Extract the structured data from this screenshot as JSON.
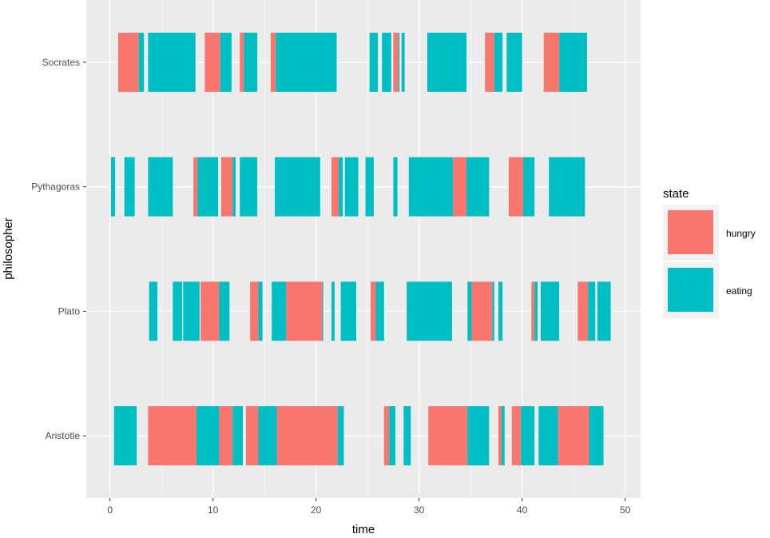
{
  "chart_data": {
    "type": "bar",
    "orientation": "horizontal-timeline",
    "xlabel": "time",
    "ylabel": "philosopher",
    "xlim": [
      -2.3,
      51.5
    ],
    "x_ticks": [
      0,
      10,
      20,
      30,
      40,
      50
    ],
    "x_tick_labels": [
      "0",
      "10",
      "20",
      "30",
      "40",
      "50"
    ],
    "categories": [
      "Aristotle",
      "Plato",
      "Pythagoras",
      "Socrates"
    ],
    "grid": true,
    "legend": {
      "title": "state",
      "position": "right",
      "entries": [
        {
          "key": "hungry",
          "label": "hungry",
          "color": "#F8766D"
        },
        {
          "key": "eating",
          "label": "eating",
          "color": "#00BFC4"
        }
      ]
    },
    "colors": {
      "hungry": "#F8766D",
      "eating": "#00BFC4",
      "panel": "#EBEBEB",
      "grid": "#FFFFFF"
    },
    "series": [
      {
        "category": "Socrates",
        "segments": [
          {
            "state": "hungry",
            "start": 0.8,
            "end": 2.8
          },
          {
            "state": "eating",
            "start": 2.8,
            "end": 3.3
          },
          {
            "state": "eating",
            "start": 3.7,
            "end": 8.3
          },
          {
            "state": "hungry",
            "start": 9.2,
            "end": 10.7
          },
          {
            "state": "eating",
            "start": 10.7,
            "end": 11.8
          },
          {
            "state": "hungry",
            "start": 12.6,
            "end": 13.0
          },
          {
            "state": "eating",
            "start": 13.0,
            "end": 14.3
          },
          {
            "state": "hungry",
            "start": 15.6,
            "end": 16.1
          },
          {
            "state": "eating",
            "start": 16.1,
            "end": 22.0
          },
          {
            "state": "eating",
            "start": 25.2,
            "end": 26.0
          },
          {
            "state": "eating",
            "start": 26.4,
            "end": 27.3
          },
          {
            "state": "hungry",
            "start": 27.5,
            "end": 28.0
          },
          {
            "state": "eating",
            "start": 28.0,
            "end": 28.1
          },
          {
            "state": "eating",
            "start": 28.3,
            "end": 28.6
          },
          {
            "state": "eating",
            "start": 30.8,
            "end": 34.6
          },
          {
            "state": "hungry",
            "start": 36.4,
            "end": 37.3
          },
          {
            "state": "eating",
            "start": 37.3,
            "end": 38.1
          },
          {
            "state": "eating",
            "start": 38.5,
            "end": 40.0
          },
          {
            "state": "hungry",
            "start": 42.1,
            "end": 43.6
          },
          {
            "state": "eating",
            "start": 43.6,
            "end": 46.3
          }
        ]
      },
      {
        "category": "Pythagoras",
        "segments": [
          {
            "state": "eating",
            "start": 0.1,
            "end": 0.5
          },
          {
            "state": "eating",
            "start": 1.4,
            "end": 2.4
          },
          {
            "state": "eating",
            "start": 3.7,
            "end": 6.1
          },
          {
            "state": "hungry",
            "start": 8.1,
            "end": 8.5
          },
          {
            "state": "eating",
            "start": 8.5,
            "end": 10.5
          },
          {
            "state": "hungry",
            "start": 10.8,
            "end": 11.9
          },
          {
            "state": "eating",
            "start": 11.9,
            "end": 12.2
          },
          {
            "state": "eating",
            "start": 12.6,
            "end": 14.3
          },
          {
            "state": "eating",
            "start": 16.0,
            "end": 20.4
          },
          {
            "state": "hungry",
            "start": 21.5,
            "end": 22.2
          },
          {
            "state": "eating",
            "start": 22.2,
            "end": 22.6
          },
          {
            "state": "eating",
            "start": 22.8,
            "end": 24.1
          },
          {
            "state": "eating",
            "start": 24.8,
            "end": 25.6
          },
          {
            "state": "eating",
            "start": 27.5,
            "end": 27.9
          },
          {
            "state": "eating",
            "start": 29.0,
            "end": 33.3
          },
          {
            "state": "hungry",
            "start": 33.3,
            "end": 34.6
          },
          {
            "state": "eating",
            "start": 34.6,
            "end": 36.8
          },
          {
            "state": "hungry",
            "start": 38.7,
            "end": 40.1
          },
          {
            "state": "eating",
            "start": 40.1,
            "end": 41.2
          },
          {
            "state": "eating",
            "start": 42.6,
            "end": 46.1
          }
        ]
      },
      {
        "category": "Plato",
        "segments": [
          {
            "state": "eating",
            "start": 3.8,
            "end": 4.6
          },
          {
            "state": "eating",
            "start": 6.1,
            "end": 7.0
          },
          {
            "state": "eating",
            "start": 7.1,
            "end": 8.7
          },
          {
            "state": "hungry",
            "start": 8.8,
            "end": 10.6
          },
          {
            "state": "eating",
            "start": 10.6,
            "end": 11.6
          },
          {
            "state": "hungry",
            "start": 13.6,
            "end": 14.4
          },
          {
            "state": "eating",
            "start": 14.4,
            "end": 14.8
          },
          {
            "state": "eating",
            "start": 15.7,
            "end": 17.1
          },
          {
            "state": "hungry",
            "start": 17.1,
            "end": 20.6
          },
          {
            "state": "eating",
            "start": 20.6,
            "end": 20.7
          },
          {
            "state": "eating",
            "start": 21.5,
            "end": 21.8
          },
          {
            "state": "eating",
            "start": 22.4,
            "end": 23.9
          },
          {
            "state": "hungry",
            "start": 25.3,
            "end": 25.8
          },
          {
            "state": "eating",
            "start": 25.8,
            "end": 26.6
          },
          {
            "state": "eating",
            "start": 28.8,
            "end": 33.2
          },
          {
            "state": "eating",
            "start": 34.7,
            "end": 35.1
          },
          {
            "state": "hungry",
            "start": 35.1,
            "end": 37.1
          },
          {
            "state": "eating",
            "start": 37.1,
            "end": 37.3
          },
          {
            "state": "eating",
            "start": 37.7,
            "end": 38.1
          },
          {
            "state": "hungry",
            "start": 40.9,
            "end": 41.2
          },
          {
            "state": "eating",
            "start": 41.2,
            "end": 41.5
          },
          {
            "state": "eating",
            "start": 41.8,
            "end": 43.6
          },
          {
            "state": "hungry",
            "start": 45.4,
            "end": 46.4
          },
          {
            "state": "eating",
            "start": 46.4,
            "end": 47.1
          },
          {
            "state": "eating",
            "start": 47.3,
            "end": 48.6
          }
        ]
      },
      {
        "category": "Aristotle",
        "segments": [
          {
            "state": "eating",
            "start": 0.4,
            "end": 2.6
          },
          {
            "state": "hungry",
            "start": 3.7,
            "end": 8.4
          },
          {
            "state": "eating",
            "start": 8.4,
            "end": 10.6
          },
          {
            "state": "hungry",
            "start": 10.6,
            "end": 11.9
          },
          {
            "state": "eating",
            "start": 11.9,
            "end": 12.9
          },
          {
            "state": "hungry",
            "start": 13.2,
            "end": 14.4
          },
          {
            "state": "eating",
            "start": 14.4,
            "end": 16.2
          },
          {
            "state": "hungry",
            "start": 16.2,
            "end": 22.1
          },
          {
            "state": "eating",
            "start": 22.1,
            "end": 22.7
          },
          {
            "state": "hungry",
            "start": 26.6,
            "end": 27.1
          },
          {
            "state": "eating",
            "start": 27.1,
            "end": 27.7
          },
          {
            "state": "eating",
            "start": 28.5,
            "end": 29.2
          },
          {
            "state": "hungry",
            "start": 30.9,
            "end": 34.7
          },
          {
            "state": "eating",
            "start": 34.7,
            "end": 36.8
          },
          {
            "state": "hungry",
            "start": 37.7,
            "end": 38.0
          },
          {
            "state": "eating",
            "start": 38.0,
            "end": 38.3
          },
          {
            "state": "hungry",
            "start": 39.0,
            "end": 39.9
          },
          {
            "state": "eating",
            "start": 39.9,
            "end": 41.2
          },
          {
            "state": "eating",
            "start": 41.6,
            "end": 43.5
          },
          {
            "state": "hungry",
            "start": 43.5,
            "end": 46.5
          },
          {
            "state": "eating",
            "start": 46.5,
            "end": 47.9
          }
        ]
      }
    ]
  }
}
